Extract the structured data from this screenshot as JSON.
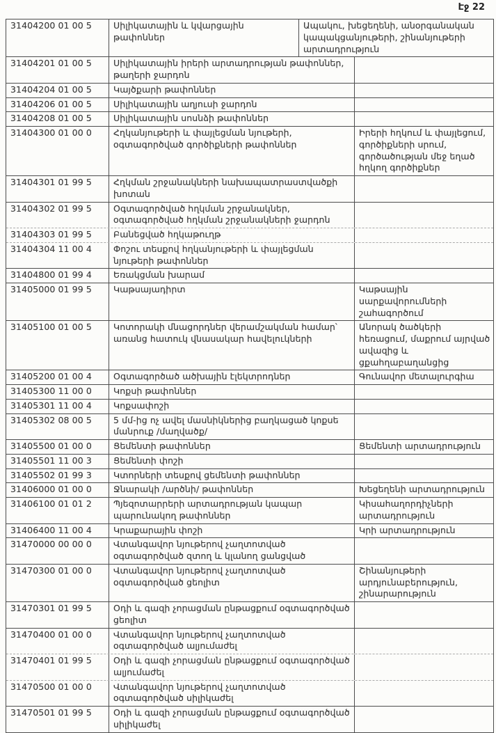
{
  "page": {
    "number_label": "Էջ 22"
  },
  "table": {
    "rows": [
      {
        "code": "31404200 01 00 5",
        "desc": "Սիլիկատային և կվարցային թափոններ",
        "source": "Ապակու, խեցեղենի, անօրգանական կապակցանյութերի, շինանյութերի արտադրություն",
        "sep": "solid",
        "wide": true
      },
      {
        "code": "31404201 01 00 5",
        "desc": "Սիլիկատային իրերի արտադրության թափոններ, թաղերի ջարդոն",
        "source": "",
        "sep": "solid"
      },
      {
        "code": "31404204 01 00 5",
        "desc": "Կայծքարի թափոններ",
        "source": "",
        "sep": "solid"
      },
      {
        "code": "31404206 01 00 5",
        "desc": "Սիլիկատային աղյուսի ջարդոն",
        "source": "",
        "sep": "solid"
      },
      {
        "code": "31404208 01 00 5",
        "desc": "Սիլիկատային սոսնձի թափոններ",
        "source": "",
        "sep": "solid"
      },
      {
        "code": "31404300 01 00 0",
        "desc": "Հղկանյութերի և փայլեցման նյութերի, օգտագործված գործիքների թափոններ",
        "source": "Իրերի հղկում և փայլեցում, գործիքների սրում, գործածության մեջ եղած հղկող գործիքներ",
        "sep": "solid"
      },
      {
        "code": "31404301 01 99 5",
        "desc": "Հղկման շրջանակների նախապատրաստվածքի խոտան",
        "source": "",
        "sep": "solid"
      },
      {
        "code": "31404302 01 99 5",
        "desc": "Օգտագործված հղկման շրջանակներ, օգտագործված հղկման շրջանակների ջարդոն",
        "source": "",
        "sep": "faint"
      },
      {
        "code": "31404303 01 99 5",
        "desc": "Բանեցված հղկաթուղթ",
        "source": "",
        "sep": "faint"
      },
      {
        "code": "31404304 11 00 4",
        "desc": "Փոշու տեսքով հղկանյութերի և փայլեցման նյութերի թափոններ",
        "source": "",
        "sep": "solid"
      },
      {
        "code": "31404800 01 99 4",
        "desc": "Եռակցման խարամ",
        "source": "",
        "sep": "solid"
      },
      {
        "code": "31405000 01 99 5",
        "desc": "Կաթսայադիրտ",
        "source": "Կաթսային սարքավորումների շահագործում",
        "sep": "solid"
      },
      {
        "code": "31405100 01 00 5",
        "desc": "Կոտորակի մնացորդներ վերամշակման համար՝ առանց հատուկ վնասակար հավելուկների",
        "source": "Անորակ ծածկերի հեռացում, մաքրում այրված ավազից և ցքահղաբաղանցից",
        "sep": "solid"
      },
      {
        "code": "31405200 01 00 4",
        "desc": "Օգտագործած ածխային էլեկտրոդներ",
        "source": "Գունավոր մետալուրգիա",
        "sep": "solid"
      },
      {
        "code": "31405300 11 00 0",
        "desc": "Կոքսի թափոններ",
        "source": "",
        "sep": "solid"
      },
      {
        "code": "31405301 11 00 4",
        "desc": "Կոքսափոշի",
        "source": "",
        "sep": "solid"
      },
      {
        "code": "31405302 08 00 5",
        "desc": "5 մմ-ից ոչ ավել մասնիկներից բաղկացած կոքսե մանրուք /մաղվածք/",
        "source": "",
        "sep": "solid"
      },
      {
        "code": "31405500 01 00 0",
        "desc": "Ցեմենտի թափոններ",
        "source": "Ցեմենտի արտադրություն",
        "sep": "solid"
      },
      {
        "code": "31405501 11 00 3",
        "desc": "Ցեմենտի փոշի",
        "source": "",
        "sep": "solid"
      },
      {
        "code": "31405502 01 99 3",
        "desc": "Կտորների տեսքով ցեմենտի թափոններ",
        "source": "",
        "sep": "solid"
      },
      {
        "code": "31406000 01 00 0",
        "desc": "Ջնարակի /արծնի/ թափոններ",
        "source": "Խեցեղենի արտադրություն",
        "sep": "solid"
      },
      {
        "code": "31406100 01 01 2",
        "desc": "Պյեզոտարրերի արտադրության կապար պարունակող թափոններ",
        "source": "Կիսահաղորդիչների արտադրություն",
        "sep": "solid"
      },
      {
        "code": "31406400 11 00 4",
        "desc": "Կրաքարային փոշի",
        "source": "Կրի արտադրություն",
        "sep": "solid"
      },
      {
        "code": "31470000 00 00 0",
        "desc": "Վտանգավոր նյութերով չաղտոտված օգտագործված  զտող և կլանող ցանցված",
        "source": "",
        "sep": "solid"
      },
      {
        "code": "31470300 01 00 0",
        "desc": "Վտանգավոր նյութերով չաղտոտված օգտագործված ցեոլիտ",
        "source": "Շինանյութերի արդյունաբերություն, շինարարություն",
        "sep": "solid"
      },
      {
        "code": "31470301 01 99 5",
        "desc": "Օդի և գազի չորացման ընթացքում օգտագործված ցեոլիտ",
        "source": "",
        "sep": "solid"
      },
      {
        "code": "31470400 01 00 0",
        "desc": "Վտանգավոր նյութերով չաղտոտված օգտագործված ալյումաժել",
        "source": "",
        "sep": "faint"
      },
      {
        "code": "31470401 01 99 5",
        "desc": "Օդի և գազի չորացման ընթացքում օգտագործված  ալյումաժել",
        "source": "",
        "sep": "faint"
      },
      {
        "code": "31470500 01 00 0",
        "desc": "Վտանգավոր նյութերով չաղտոտված օգտագործված սիլիկաժել",
        "source": "",
        "sep": "solid"
      },
      {
        "code": "31470501 01 99 5",
        "desc": "Օդի և գազի չորացման ընթացքում օգտագործված սիլիկաժել",
        "source": "",
        "sep": "none"
      }
    ]
  }
}
